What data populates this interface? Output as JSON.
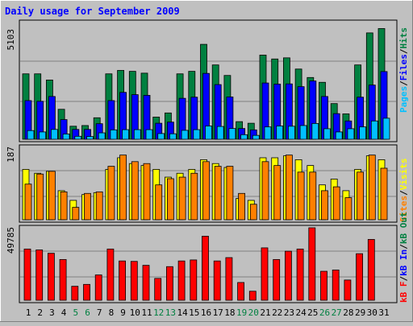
{
  "chart_data": [
    {
      "type": "bar",
      "title": "Daily usage for September 2009",
      "ylabel_top_value": "5103",
      "ymax": 5103,
      "categories": [
        "1",
        "2",
        "3",
        "4",
        "5",
        "6",
        "7",
        "8",
        "9",
        "10",
        "11",
        "12",
        "13",
        "14",
        "15",
        "16",
        "17",
        "18",
        "19",
        "20",
        "21",
        "22",
        "23",
        "24",
        "25",
        "26",
        "27",
        "28",
        "29",
        "30",
        "31"
      ],
      "weekend_days": [
        "5",
        "6",
        "12",
        "13",
        "19",
        "20",
        "26",
        "27"
      ],
      "series": [
        {
          "name": "Hits",
          "values": [
            2860,
            2860,
            2590,
            1310,
            570,
            600,
            940,
            2860,
            3010,
            2970,
            2890,
            970,
            1150,
            2860,
            2970,
            4150,
            3250,
            2790,
            770,
            700,
            3680,
            3510,
            3560,
            3070,
            2700,
            2490,
            1560,
            1110,
            3250,
            4650,
            4840
          ]
        },
        {
          "name": "Files",
          "values": [
            1690,
            1660,
            1870,
            860,
            430,
            430,
            680,
            1690,
            2050,
            1950,
            1920,
            700,
            750,
            1790,
            1840,
            2880,
            2390,
            1850,
            470,
            410,
            2460,
            2410,
            2420,
            2300,
            2550,
            1870,
            1120,
            800,
            1840,
            2370,
            2960
          ]
        },
        {
          "name": "Pages",
          "values": [
            380,
            320,
            430,
            230,
            130,
            120,
            280,
            410,
            420,
            420,
            420,
            250,
            240,
            390,
            420,
            580,
            560,
            470,
            200,
            170,
            540,
            580,
            570,
            600,
            690,
            460,
            320,
            460,
            540,
            800,
            920
          ]
        }
      ],
      "legend": [
        "Pages",
        "Files",
        "Hits"
      ],
      "colors": {
        "Pages": "#00c0ff",
        "Files": "#0000ff",
        "Hits": "#008040"
      }
    },
    {
      "type": "bar",
      "ylabel_top_value": "187",
      "ymax": 187,
      "series": [
        {
          "name": "Visits",
          "values": [
            130,
            120,
            125,
            75,
            50,
            65,
            70,
            130,
            160,
            145,
            140,
            130,
            110,
            120,
            130,
            155,
            145,
            135,
            55,
            50,
            160,
            160,
            165,
            155,
            140,
            90,
            105,
            75,
            130,
            165,
            155
          ]
        },
        {
          "name": "Sites",
          "values": [
            92,
            118,
            125,
            72,
            32,
            68,
            72,
            138,
            167,
            150,
            145,
            90,
            106,
            110,
            120,
            150,
            138,
            138,
            68,
            40,
            150,
            140,
            167,
            123,
            123,
            75,
            85,
            57,
            123,
            167,
            133
          ]
        }
      ],
      "legend": [
        "Sites",
        "Visits"
      ],
      "colors": {
        "Visits": "#ffff00",
        "Sites": "#ff8000"
      }
    },
    {
      "type": "bar",
      "ylabel_top_value": "49785",
      "ymax": 49785,
      "series": [
        {
          "name": "kB F",
          "values": [
            35200,
            34600,
            32300,
            28000,
            9600,
            10900,
            17400,
            35200,
            27000,
            26700,
            24000,
            15000,
            23100,
            27000,
            27700,
            44000,
            27000,
            29300,
            12200,
            6200,
            36000,
            28000,
            33700,
            35200,
            49800,
            19900,
            20800,
            13900,
            32000,
            41800,
            0
          ]
        }
      ],
      "legend": [
        "kB F",
        "kB In",
        "kB Out"
      ],
      "colors": {
        "kB F": "#ff0000",
        "kB In": "#0000ff",
        "kB Out": "#008040"
      }
    }
  ],
  "colors": {
    "background": "#c0c0c0",
    "title": "#0000ff",
    "weekday_label": "#000000",
    "weekend_label": "#008040"
  }
}
